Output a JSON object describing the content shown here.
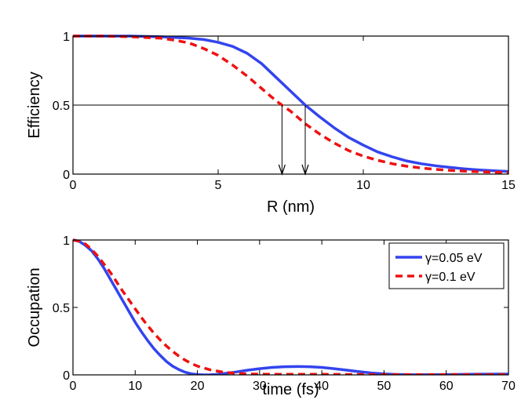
{
  "chart_data": [
    {
      "type": "line",
      "title": "",
      "xlabel": "R (nm)",
      "ylabel": "Efficiency",
      "xlim": [
        0,
        15
      ],
      "ylim": [
        0,
        1
      ],
      "xticks": [
        0,
        5,
        10,
        15
      ],
      "xtick_labels": [
        "0",
        "5",
        "10",
        "15"
      ],
      "yticks": [
        0,
        0.5,
        1
      ],
      "ytick_labels": [
        "0",
        "0.5",
        "1"
      ],
      "grid": false,
      "series": [
        {
          "name": "γ=0.05 eV",
          "style": "solid",
          "color": "#3344ee",
          "x": [
            0,
            1,
            2,
            3,
            4,
            4.5,
            5,
            5.5,
            6,
            6.5,
            7,
            7.5,
            8,
            8.5,
            9,
            9.5,
            10,
            10.5,
            11,
            11.5,
            12,
            12.5,
            13,
            13.5,
            14,
            14.5,
            15
          ],
          "y": [
            1.0,
            1.0,
            1.0,
            0.995,
            0.985,
            0.975,
            0.955,
            0.925,
            0.875,
            0.8,
            0.7,
            0.6,
            0.5,
            0.415,
            0.335,
            0.265,
            0.21,
            0.16,
            0.125,
            0.095,
            0.075,
            0.06,
            0.048,
            0.038,
            0.03,
            0.024,
            0.019
          ]
        },
        {
          "name": "γ=0.1 eV",
          "style": "dashed",
          "color": "#ee1111",
          "x": [
            0,
            1,
            2,
            3,
            3.5,
            4,
            4.5,
            5,
            5.5,
            6,
            6.5,
            7,
            7.2,
            7.5,
            8,
            8.5,
            9,
            9.5,
            10,
            10.5,
            11,
            11.5,
            12,
            12.5,
            13,
            13.5,
            14,
            14.5,
            15
          ],
          "y": [
            1.0,
            1.0,
            0.995,
            0.985,
            0.97,
            0.95,
            0.91,
            0.86,
            0.79,
            0.71,
            0.62,
            0.53,
            0.5,
            0.455,
            0.365,
            0.29,
            0.225,
            0.17,
            0.13,
            0.1,
            0.075,
            0.057,
            0.044,
            0.034,
            0.027,
            0.021,
            0.017,
            0.014,
            0.012
          ]
        }
      ],
      "reference_line": {
        "y": 0.5
      },
      "annotations": [
        {
          "type": "arrow",
          "x": 7.2,
          "from_y": 0.5,
          "to_y": 0
        },
        {
          "type": "arrow",
          "x": 8.0,
          "from_y": 0.5,
          "to_y": 0
        }
      ]
    },
    {
      "type": "line",
      "title": "",
      "xlabel": "time (fs)",
      "ylabel": "Occupation",
      "xlim": [
        0,
        70
      ],
      "ylim": [
        0,
        1
      ],
      "xticks": [
        0,
        10,
        20,
        30,
        40,
        50,
        60,
        70
      ],
      "xtick_labels": [
        "0",
        "10",
        "20",
        "30",
        "40",
        "50",
        "60",
        "70"
      ],
      "yticks": [
        0,
        0.5,
        1
      ],
      "ytick_labels": [
        "0",
        "0.5",
        "1"
      ],
      "grid": false,
      "legend": {
        "position": "top-right",
        "entries": [
          "γ=0.05 eV",
          "γ=0.1 eV"
        ]
      },
      "series": [
        {
          "name": "γ=0.05 eV",
          "style": "solid",
          "color": "#3344ee",
          "x": [
            0,
            1,
            2,
            3,
            4,
            5,
            6,
            7,
            8,
            9,
            10,
            11,
            12,
            13,
            14,
            15,
            16,
            17,
            18,
            19,
            20,
            21,
            22,
            23,
            24,
            25,
            26,
            28,
            30,
            32,
            34,
            36,
            38,
            40,
            42,
            44,
            46,
            48,
            50,
            52,
            55,
            60,
            65,
            70
          ],
          "y": [
            1.0,
            0.99,
            0.96,
            0.92,
            0.86,
            0.79,
            0.71,
            0.63,
            0.55,
            0.47,
            0.39,
            0.32,
            0.255,
            0.195,
            0.145,
            0.1,
            0.065,
            0.04,
            0.02,
            0.008,
            0.002,
            0.0,
            0.001,
            0.003,
            0.008,
            0.014,
            0.02,
            0.034,
            0.046,
            0.055,
            0.06,
            0.062,
            0.06,
            0.055,
            0.046,
            0.035,
            0.024,
            0.014,
            0.007,
            0.003,
            0.001,
            0.002,
            0.005,
            0.006
          ]
        },
        {
          "name": "γ=0.1 eV",
          "style": "dashed",
          "color": "#ee1111",
          "x": [
            0,
            1,
            2,
            3,
            4,
            5,
            6,
            7,
            8,
            9,
            10,
            11,
            12,
            13,
            14,
            15,
            16,
            17,
            18,
            19,
            20,
            22,
            24,
            26,
            28,
            30,
            33,
            36,
            40,
            45,
            50,
            55,
            60,
            65,
            70
          ],
          "y": [
            1.0,
            0.99,
            0.97,
            0.93,
            0.88,
            0.82,
            0.76,
            0.69,
            0.62,
            0.555,
            0.49,
            0.425,
            0.365,
            0.31,
            0.26,
            0.215,
            0.175,
            0.14,
            0.11,
            0.085,
            0.065,
            0.038,
            0.021,
            0.012,
            0.007,
            0.005,
            0.004,
            0.004,
            0.004,
            0.003,
            0.002,
            0.002,
            0.002,
            0.002,
            0.002
          ]
        }
      ]
    }
  ]
}
